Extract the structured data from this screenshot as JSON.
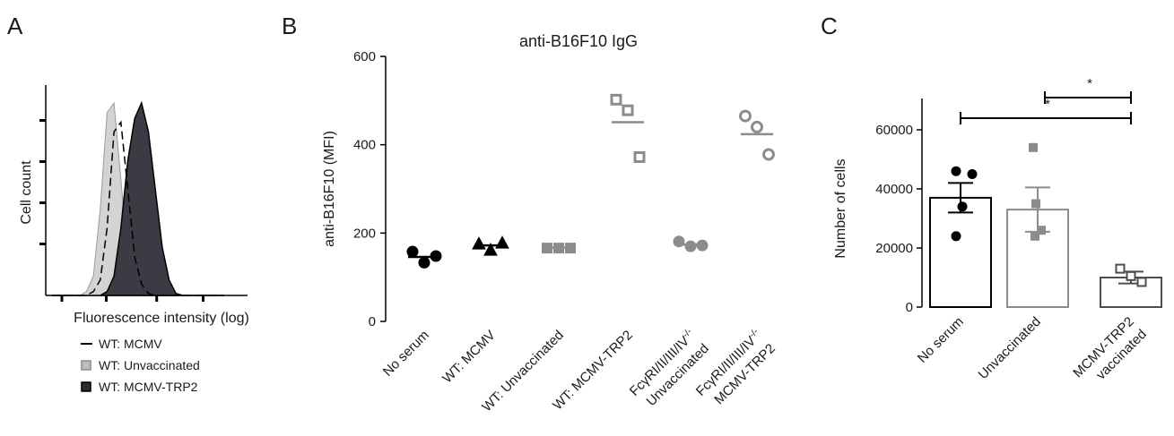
{
  "panels": [
    {
      "letter": "A"
    },
    {
      "letter": "B"
    },
    {
      "letter": "C"
    }
  ],
  "colors": {
    "black": "#000000",
    "gray": "#8c8c8c",
    "light_fill": "#d3d3d3",
    "dark_fill": "#3b3b44"
  },
  "chart_data": [
    {
      "panel": "A",
      "type": "area",
      "title": "",
      "xlabel": "Fluorescence intensity (log)",
      "ylabel": "Cell count",
      "xscale": "log",
      "ticks_labeled": false,
      "x": [
        0,
        0.04,
        0.08,
        0.12,
        0.16,
        0.2,
        0.24,
        0.28,
        0.32,
        0.36,
        0.4,
        0.44,
        0.48,
        0.52,
        0.56,
        0.6,
        0.64,
        0.68,
        0.72,
        0.76,
        0.8,
        0.84,
        0.88,
        0.92,
        0.96,
        1
      ],
      "series": [
        {
          "name": "WT: MCMV",
          "style": "dashed line",
          "values": [
            0,
            0,
            0,
            0,
            0,
            0,
            0.02,
            0.08,
            0.35,
            0.85,
            0.9,
            0.55,
            0.2,
            0.06,
            0.01,
            0,
            0,
            0,
            0,
            0,
            0,
            0,
            0,
            0,
            0,
            0
          ]
        },
        {
          "name": "WT: Unvaccinated",
          "style": "light gray filled",
          "values": [
            0,
            0,
            0,
            0,
            0,
            0.02,
            0.1,
            0.45,
            0.95,
            1.0,
            0.6,
            0.2,
            0.06,
            0.01,
            0,
            0,
            0,
            0,
            0,
            0,
            0,
            0,
            0,
            0,
            0,
            0
          ]
        },
        {
          "name": "WT: MCMV-TRP2",
          "style": "dark filled",
          "values": [
            0,
            0,
            0,
            0,
            0,
            0,
            0,
            0,
            0.02,
            0.1,
            0.35,
            0.7,
            0.92,
            1.0,
            0.85,
            0.55,
            0.25,
            0.08,
            0.01,
            0,
            0,
            0,
            0,
            0,
            0,
            0
          ]
        }
      ],
      "legend_placement": "below"
    },
    {
      "panel": "B",
      "type": "scatter",
      "title": "anti-B16F10 IgG",
      "xlabel": "",
      "ylabel": "anti-B16F10 (MFI)",
      "ylim": [
        0,
        600
      ],
      "yticks": [
        0,
        200,
        400,
        600
      ],
      "categories": [
        {
          "label": "No serum",
          "marker": "circle",
          "filled": true,
          "color": "#000000",
          "points": [
            158,
            133,
            148
          ],
          "mean": 146
        },
        {
          "label": "WT: MCMV",
          "marker": "triangle",
          "filled": true,
          "color": "#000000",
          "points": [
            176,
            162,
            178
          ],
          "mean": 172
        },
        {
          "label": "WT: Unvaccinated",
          "marker": "square",
          "filled": true,
          "color": "#8c8c8c",
          "points": [
            166,
            166,
            166
          ],
          "mean": 167
        },
        {
          "label": "WT: MCMV-TRP2",
          "marker": "square",
          "filled": false,
          "color": "#8c8c8c",
          "points": [
            502,
            478,
            372
          ],
          "mean": 451
        },
        {
          "label_line1": "FcγRI/II/III/IV",
          "label_sup": "-/-",
          "label_line2": "Unvaccinated",
          "marker": "circle",
          "filled": true,
          "color": "#8c8c8c",
          "points": [
            181,
            170,
            172
          ],
          "mean": 174
        },
        {
          "label_line1": "FcγRI/II/III/IV",
          "label_sup": "-/-",
          "label_line2": "MCMV-TRP2",
          "marker": "circle",
          "filled": false,
          "color": "#8c8c8c",
          "points": [
            465,
            440,
            378
          ],
          "mean": 424
        }
      ]
    },
    {
      "panel": "C",
      "type": "bar",
      "title": "",
      "xlabel": "",
      "ylabel": "Number of cells",
      "ylim": [
        0,
        70000
      ],
      "yticks": [
        0,
        20000,
        40000,
        60000
      ],
      "categories": [
        {
          "label": "No serum",
          "value": 37000,
          "sem": 5000,
          "color": "#000000",
          "marker": "circle",
          "points": [
            46000,
            45000,
            34000,
            24000
          ]
        },
        {
          "label": "Unvaccinated",
          "value": 33000,
          "sem": 7500,
          "color": "#8c8c8c",
          "marker": "square",
          "points": [
            54000,
            35000,
            26000,
            24000
          ]
        },
        {
          "label_line1": "MCMV-TRP2",
          "label_line2": "vaccinated",
          "value": 10000,
          "sem": 2000,
          "color": "#4d4d4d",
          "marker": "open-square",
          "points": [
            13000,
            10500,
            8500
          ]
        }
      ],
      "significance": [
        {
          "from": 1,
          "to": 2,
          "y": 71000,
          "label": "*"
        },
        {
          "from": 0,
          "to": 2,
          "y": 63000,
          "label": "*"
        }
      ]
    }
  ]
}
